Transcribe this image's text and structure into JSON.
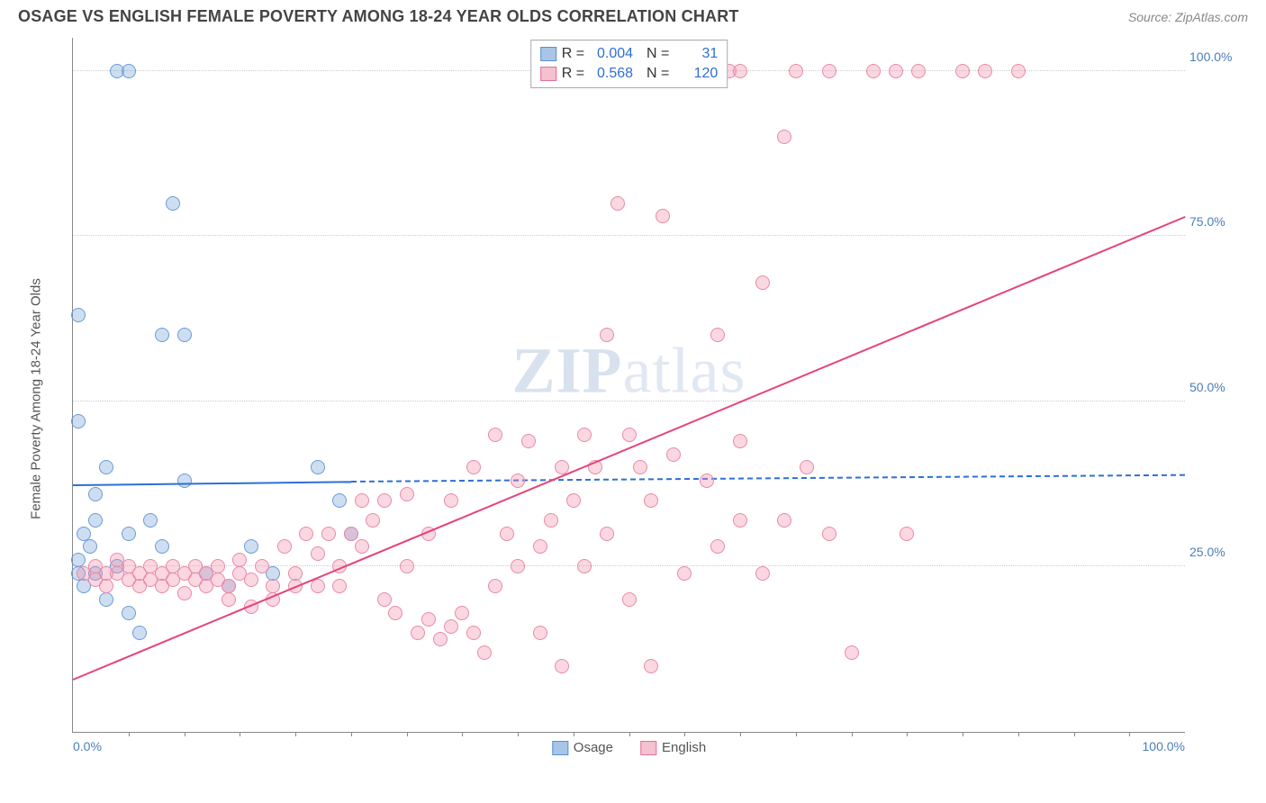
{
  "header": {
    "title": "OSAGE VS ENGLISH FEMALE POVERTY AMONG 18-24 YEAR OLDS CORRELATION CHART",
    "source": "Source: ZipAtlas.com"
  },
  "watermark": {
    "bold": "ZIP",
    "light": "atlas"
  },
  "chart": {
    "type": "scatter",
    "y_axis_label": "Female Poverty Among 18-24 Year Olds",
    "xlim": [
      0,
      100
    ],
    "ylim": [
      0,
      105
    ],
    "x_ticks": [
      0,
      100
    ],
    "x_tick_labels": [
      "0.0%",
      "100.0%"
    ],
    "y_ticks": [
      25,
      50,
      75,
      100
    ],
    "y_tick_labels": [
      "25.0%",
      "50.0%",
      "75.0%",
      "100.0%"
    ],
    "minor_x_ticks": [
      5,
      10,
      15,
      20,
      25,
      30,
      35,
      40,
      45,
      50,
      55,
      60,
      65,
      70,
      75,
      80,
      85,
      90,
      95
    ],
    "grid_color": "#cccccc",
    "background_color": "#ffffff",
    "marker_radius": 8,
    "marker_stroke_width": 1.5,
    "series": [
      {
        "name": "Osage",
        "fill": "rgba(115,160,215,0.35)",
        "stroke": "#6a9bd8",
        "swatch_fill": "#a8c5e8",
        "swatch_stroke": "#5b8fd0",
        "R": "0.004",
        "N": "31",
        "trend": {
          "solid_x1": 0,
          "solid_y1": 37.5,
          "solid_x2": 25,
          "solid_y2": 38.0,
          "dash_x2": 100,
          "dash_y2": 39.0,
          "color": "#2e6fd8"
        },
        "points": [
          [
            0.5,
            24
          ],
          [
            0.5,
            26
          ],
          [
            1,
            30
          ],
          [
            1,
            22
          ],
          [
            1.5,
            28
          ],
          [
            2,
            24
          ],
          [
            2,
            32
          ],
          [
            2,
            36
          ],
          [
            3,
            20
          ],
          [
            3,
            40
          ],
          [
            4,
            25
          ],
          [
            4,
            100
          ],
          [
            5,
            100
          ],
          [
            5,
            30
          ],
          [
            5,
            18
          ],
          [
            6,
            15
          ],
          [
            7,
            32
          ],
          [
            8,
            28
          ],
          [
            8,
            60
          ],
          [
            9,
            80
          ],
          [
            10,
            60
          ],
          [
            10,
            38
          ],
          [
            12,
            24
          ],
          [
            14,
            22
          ],
          [
            0.5,
            47
          ],
          [
            0.5,
            63
          ],
          [
            16,
            28
          ],
          [
            18,
            24
          ],
          [
            22,
            40
          ],
          [
            24,
            35
          ],
          [
            25,
            30
          ]
        ]
      },
      {
        "name": "English",
        "fill": "rgba(240,140,170,0.35)",
        "stroke": "#e88aa8",
        "swatch_fill": "#f5c0d0",
        "swatch_stroke": "#e27095",
        "R": "0.568",
        "N": "120",
        "trend": {
          "solid_x1": 0,
          "solid_y1": 8,
          "solid_x2": 100,
          "solid_y2": 78,
          "color": "#e5447a"
        },
        "points": [
          [
            1,
            24
          ],
          [
            2,
            23
          ],
          [
            2,
            25
          ],
          [
            3,
            24
          ],
          [
            3,
            22
          ],
          [
            4,
            24
          ],
          [
            4,
            26
          ],
          [
            5,
            23
          ],
          [
            5,
            25
          ],
          [
            6,
            22
          ],
          [
            6,
            24
          ],
          [
            7,
            25
          ],
          [
            7,
            23
          ],
          [
            8,
            24
          ],
          [
            8,
            22
          ],
          [
            9,
            25
          ],
          [
            9,
            23
          ],
          [
            10,
            24
          ],
          [
            10,
            21
          ],
          [
            11,
            23
          ],
          [
            11,
            25
          ],
          [
            12,
            22
          ],
          [
            12,
            24
          ],
          [
            13,
            25
          ],
          [
            13,
            23
          ],
          [
            14,
            22
          ],
          [
            14,
            20
          ],
          [
            15,
            24
          ],
          [
            15,
            26
          ],
          [
            16,
            23
          ],
          [
            16,
            19
          ],
          [
            17,
            25
          ],
          [
            18,
            22
          ],
          [
            18,
            20
          ],
          [
            19,
            28
          ],
          [
            20,
            24
          ],
          [
            20,
            22
          ],
          [
            21,
            30
          ],
          [
            22,
            22
          ],
          [
            22,
            27
          ],
          [
            23,
            30
          ],
          [
            24,
            25
          ],
          [
            24,
            22
          ],
          [
            25,
            30
          ],
          [
            26,
            35
          ],
          [
            26,
            28
          ],
          [
            27,
            32
          ],
          [
            28,
            20
          ],
          [
            28,
            35
          ],
          [
            29,
            18
          ],
          [
            30,
            25
          ],
          [
            30,
            36
          ],
          [
            31,
            15
          ],
          [
            32,
            17
          ],
          [
            32,
            30
          ],
          [
            33,
            14
          ],
          [
            34,
            16
          ],
          [
            34,
            35
          ],
          [
            35,
            18
          ],
          [
            36,
            40
          ],
          [
            36,
            15
          ],
          [
            37,
            12
          ],
          [
            38,
            45
          ],
          [
            38,
            22
          ],
          [
            39,
            30
          ],
          [
            40,
            38
          ],
          [
            40,
            25
          ],
          [
            41,
            44
          ],
          [
            42,
            28
          ],
          [
            42,
            15
          ],
          [
            43,
            32
          ],
          [
            44,
            40
          ],
          [
            44,
            10
          ],
          [
            45,
            35
          ],
          [
            46,
            45
          ],
          [
            46,
            25
          ],
          [
            47,
            40
          ],
          [
            48,
            60
          ],
          [
            48,
            30
          ],
          [
            49,
            80
          ],
          [
            50,
            45
          ],
          [
            50,
            20
          ],
          [
            51,
            40
          ],
          [
            52,
            35
          ],
          [
            52,
            10
          ],
          [
            53,
            78
          ],
          [
            54,
            42
          ],
          [
            55,
            24
          ],
          [
            55,
            100
          ],
          [
            56,
            100
          ],
          [
            57,
            38
          ],
          [
            58,
            60
          ],
          [
            58,
            28
          ],
          [
            60,
            44
          ],
          [
            60,
            32
          ],
          [
            62,
            24
          ],
          [
            62,
            68
          ],
          [
            64,
            90
          ],
          [
            64,
            32
          ],
          [
            65,
            100
          ],
          [
            66,
            40
          ],
          [
            68,
            30
          ],
          [
            68,
            100
          ],
          [
            70,
            12
          ],
          [
            72,
            100
          ],
          [
            74,
            100
          ],
          [
            75,
            30
          ],
          [
            76,
            100
          ],
          [
            80,
            100
          ],
          [
            82,
            100
          ],
          [
            85,
            100
          ],
          [
            55,
            100
          ],
          [
            56,
            100
          ],
          [
            57,
            100
          ],
          [
            58,
            100
          ],
          [
            59,
            100
          ],
          [
            60,
            100
          ],
          [
            52,
            100
          ],
          [
            53,
            100
          ],
          [
            54,
            100
          ]
        ]
      }
    ],
    "legend_bottom": [
      {
        "label": "Osage",
        "swatch_fill": "#a8c5e8",
        "swatch_stroke": "#5b8fd0"
      },
      {
        "label": "English",
        "swatch_fill": "#f5c0d0",
        "swatch_stroke": "#e27095"
      }
    ]
  }
}
